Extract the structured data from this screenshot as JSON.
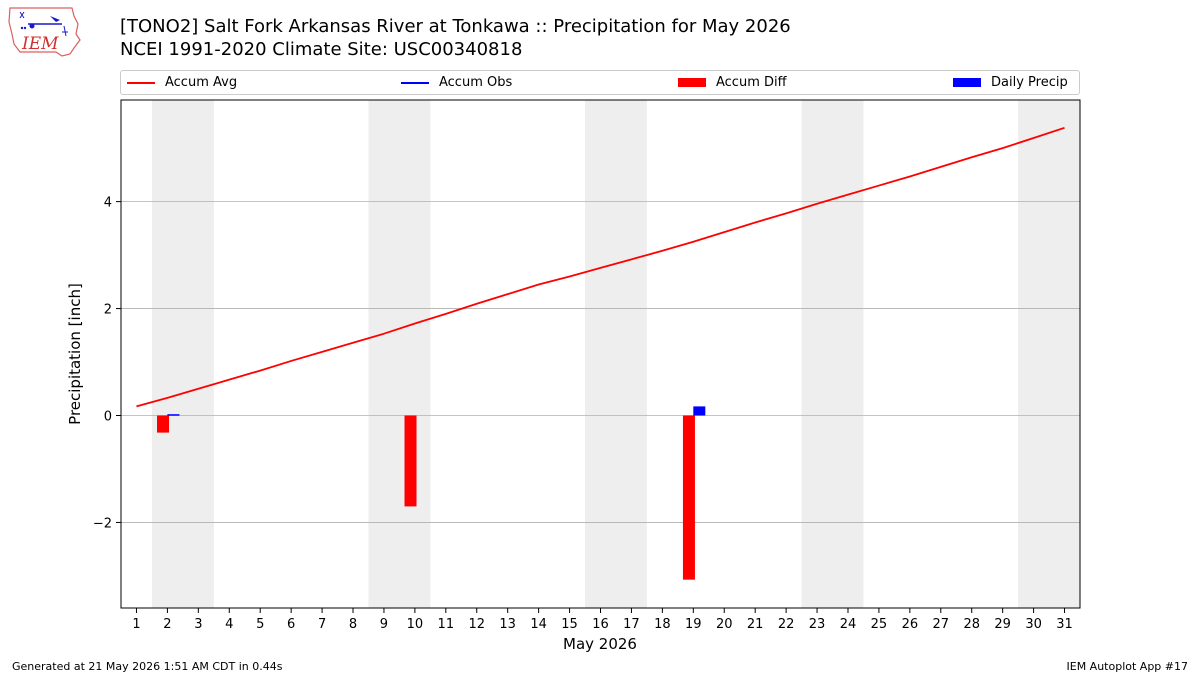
{
  "header": {
    "title_line1": "[TONO2] Salt Fork Arkansas River at Tonkawa :: Precipitation for May 2026",
    "title_line2": "NCEI 1991-2020 Climate Site: USC00340818",
    "logo_text": "IEM"
  },
  "footer": {
    "left": "Generated at 21 May 2026 1:51 AM CDT in 0.44s",
    "right": "IEM Autoplot App #17"
  },
  "colors": {
    "accum_avg": "#ff0000",
    "accum_obs": "#0000ff",
    "accum_diff": "#ff0000",
    "daily_precip": "#0000ff",
    "weekend_shade": "#eeeeee",
    "grid": "#b0b0b0"
  },
  "chart_data": {
    "type": "bar",
    "xlabel": "May 2026",
    "ylabel": "Precipitation [inch]",
    "xlim": [
      0.5,
      31.5
    ],
    "ylim": [
      -3.6,
      5.9
    ],
    "y_ticks": [
      -2,
      0,
      2,
      4
    ],
    "y_tick_labels": [
      "−2",
      "0",
      "2",
      "4"
    ],
    "x_ticks": [
      1,
      2,
      3,
      4,
      5,
      6,
      7,
      8,
      9,
      10,
      11,
      12,
      13,
      14,
      15,
      16,
      17,
      18,
      19,
      20,
      21,
      22,
      23,
      24,
      25,
      26,
      27,
      28,
      29,
      30,
      31
    ],
    "grid": "horizontal",
    "legend_position": "top",
    "weekend_ranges": [
      [
        1.5,
        3.5
      ],
      [
        8.5,
        10.5
      ],
      [
        15.5,
        17.5
      ],
      [
        22.5,
        24.5
      ],
      [
        29.5,
        31.5
      ]
    ],
    "series": [
      {
        "name": "Accum Avg",
        "kind": "line",
        "x": [
          1,
          2,
          3,
          4,
          5,
          6,
          7,
          8,
          9,
          10,
          11,
          12,
          13,
          14,
          15,
          16,
          17,
          18,
          19,
          20,
          21,
          22,
          23,
          24,
          25,
          26,
          27,
          28,
          29,
          30,
          31
        ],
        "values": [
          0.17,
          0.33,
          0.5,
          0.67,
          0.84,
          1.02,
          1.19,
          1.36,
          1.53,
          1.72,
          1.9,
          2.09,
          2.27,
          2.45,
          2.6,
          2.76,
          2.92,
          3.08,
          3.25,
          3.43,
          3.61,
          3.78,
          3.96,
          4.13,
          4.3,
          4.47,
          4.65,
          4.83,
          5.0,
          5.19,
          5.38
        ]
      },
      {
        "name": "Accum Obs",
        "kind": "line",
        "x": [
          2
        ],
        "values": [
          0.01
        ]
      },
      {
        "name": "Accum Diff",
        "kind": "bar",
        "x": [
          2,
          10,
          19
        ],
        "values": [
          -0.32,
          -1.7,
          -3.07
        ]
      },
      {
        "name": "Daily Precip",
        "kind": "bar",
        "x": [
          2,
          19
        ],
        "values": [
          0.01,
          0.17
        ]
      }
    ]
  }
}
